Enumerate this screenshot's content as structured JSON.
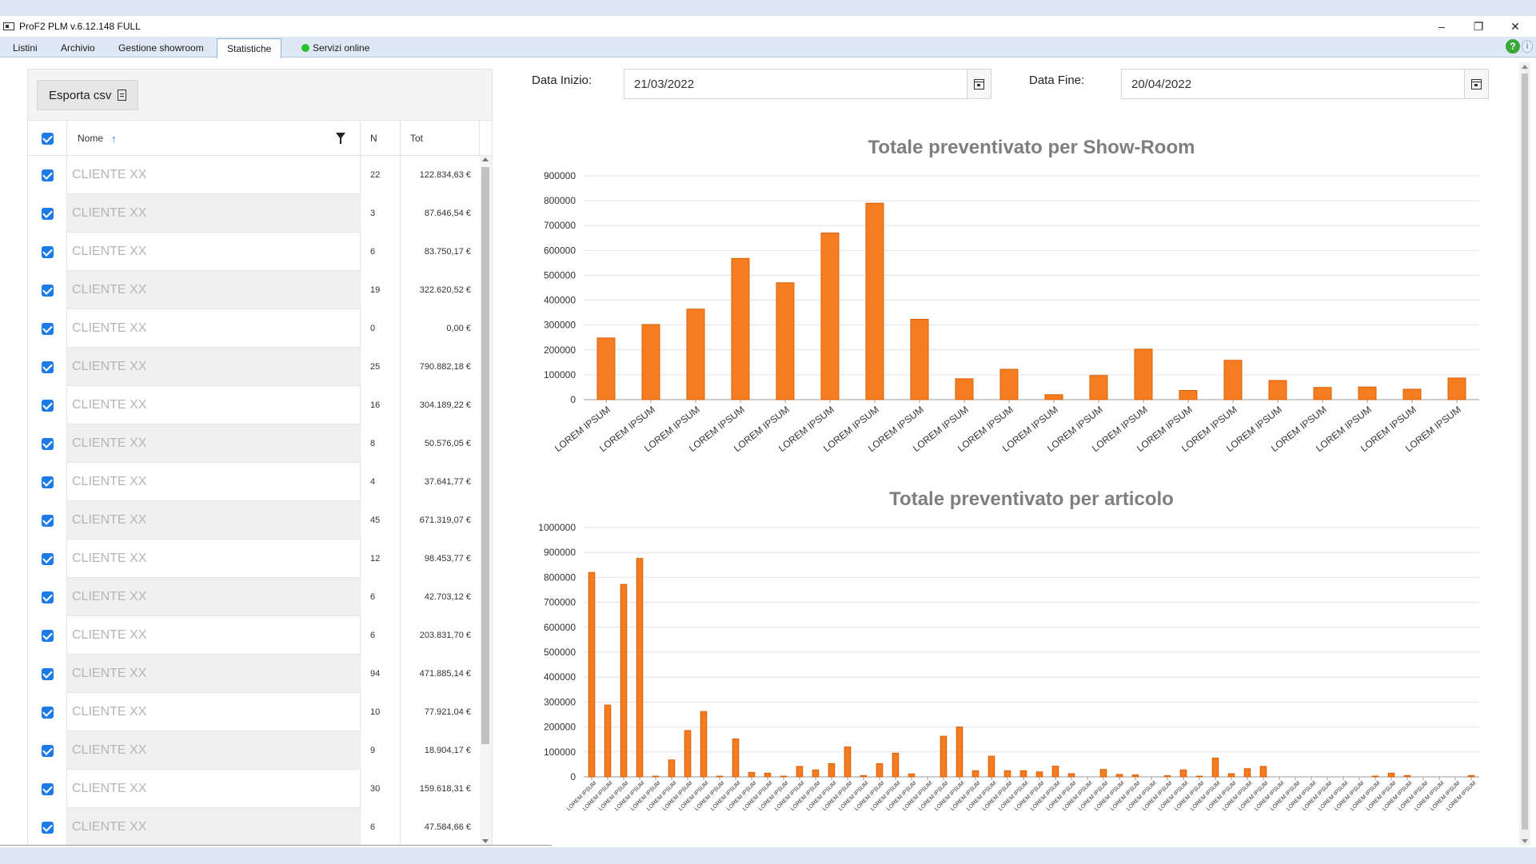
{
  "window": {
    "title": "ProF2 PLM  v.6.12.148 FULL",
    "controls": {
      "minimize": "–",
      "restore": "❐",
      "close": "✕"
    }
  },
  "tabs": [
    {
      "label": "Listini",
      "active": false
    },
    {
      "label": "Archivio",
      "active": false
    },
    {
      "label": "Gestione showroom",
      "active": false
    },
    {
      "label": "Statistiche",
      "active": true
    },
    {
      "label": "Servizi online",
      "active": false,
      "status_color": "#27c12b"
    }
  ],
  "help": {
    "help_glyph": "?",
    "info_glyph": "i"
  },
  "toolbar": {
    "export_label": "Esporta csv"
  },
  "table": {
    "headers": {
      "name": "Nome",
      "n": "N",
      "tot": "Tot"
    },
    "sort_indicator": "↑",
    "rows": [
      {
        "name": "CLIENTE XX",
        "n": "22",
        "tot": "122.834,63 €"
      },
      {
        "name": "CLIENTE XX",
        "n": "3",
        "tot": "87.646,54 €"
      },
      {
        "name": "CLIENTE XX",
        "n": "6",
        "tot": "83.750,17 €"
      },
      {
        "name": "CLIENTE XX",
        "n": "19",
        "tot": "322.620,52 €"
      },
      {
        "name": "CLIENTE XX",
        "n": "0",
        "tot": "0,00 €"
      },
      {
        "name": "CLIENTE XX",
        "n": "25",
        "tot": "790.882,18 €"
      },
      {
        "name": "CLIENTE XX",
        "n": "16",
        "tot": "304.189,22 €"
      },
      {
        "name": "CLIENTE XX",
        "n": "8",
        "tot": "50.576,05 €"
      },
      {
        "name": "CLIENTE XX",
        "n": "4",
        "tot": "37.641,77 €"
      },
      {
        "name": "CLIENTE XX",
        "n": "45",
        "tot": "671.319,07 €"
      },
      {
        "name": "CLIENTE XX",
        "n": "12",
        "tot": "98.453,77 €"
      },
      {
        "name": "CLIENTE XX",
        "n": "6",
        "tot": "42.703,12 €"
      },
      {
        "name": "CLIENTE XX",
        "n": "6",
        "tot": "203.831,70 €"
      },
      {
        "name": "CLIENTE XX",
        "n": "94",
        "tot": "471.885,14 €"
      },
      {
        "name": "CLIENTE XX",
        "n": "10",
        "tot": "77.921,04 €"
      },
      {
        "name": "CLIENTE XX",
        "n": "9",
        "tot": "18.904,17 €"
      },
      {
        "name": "CLIENTE XX",
        "n": "30",
        "tot": "159.618,31 €"
      },
      {
        "name": "CLIENTE XX",
        "n": "6",
        "tot": "47.584,66 €"
      }
    ]
  },
  "filters": {
    "start_label": "Data Inizio:",
    "start_value": "21/03/2022",
    "end_label": "Data Fine:",
    "end_value": "20/04/2022"
  },
  "colors": {
    "bar": "#f57c1f",
    "bar_dark": "#d9600a",
    "checkbox": "#1e7be6"
  },
  "chart_data": [
    {
      "type": "bar",
      "title": "Totale preventivato per Show-Room",
      "xlabel": "",
      "ylabel": "",
      "ylim": [
        0,
        900000
      ],
      "yticks": [
        0,
        100000,
        200000,
        300000,
        400000,
        500000,
        600000,
        700000,
        800000,
        900000
      ],
      "grid": true,
      "categories": [
        "LOREM IPSUM",
        "LOREM IPSUM",
        "LOREM IPSUM",
        "LOREM IPSUM",
        "LOREM IPSUM",
        "LOREM IPSUM",
        "LOREM IPSUM",
        "LOREM IPSUM",
        "LOREM IPSUM",
        "LOREM IPSUM",
        "LOREM IPSUM",
        "LOREM IPSUM",
        "LOREM IPSUM",
        "LOREM IPSUM",
        "LOREM IPSUM",
        "LOREM IPSUM",
        "LOREM IPSUM",
        "LOREM IPSUM",
        "LOREM IPSUM",
        "LOREM IPSUM"
      ],
      "values": [
        248000,
        302000,
        364000,
        568000,
        470000,
        670000,
        790000,
        323000,
        84000,
        122000,
        20000,
        97000,
        203000,
        37000,
        158000,
        77000,
        49000,
        51000,
        42000,
        87000
      ]
    },
    {
      "type": "bar",
      "title": "Totale preventivato per articolo",
      "xlabel": "",
      "ylabel": "",
      "ylim": [
        0,
        1000000
      ],
      "yticks": [
        0,
        100000,
        200000,
        300000,
        400000,
        500000,
        600000,
        700000,
        800000,
        900000,
        1000000
      ],
      "grid": true,
      "categories": [
        "LOREM IPSUM",
        "LOREM IPSUM",
        "LOREM IPSUM",
        "LOREM IPSUM",
        "LOREM IPSUM",
        "LOREM IPSUM",
        "LOREM IPSUM",
        "LOREM IPSUM",
        "LOREM IPSUM",
        "LOREM IPSUM",
        "LOREM IPSUM",
        "LOREM IPSUM",
        "LOREM IPSUM",
        "LOREM IPSUM",
        "LOREM IPSUM",
        "LOREM IPSUM",
        "LOREM IPSUM",
        "LOREM IPSUM",
        "LOREM IPSUM",
        "LOREM IPSUM",
        "LOREM IPSUM",
        "LOREM IPSUM",
        "LOREM IPSUM",
        "LOREM IPSUM",
        "LOREM IPSUM",
        "LOREM IPSUM",
        "LOREM IPSUM",
        "LOREM IPSUM",
        "LOREM IPSUM",
        "LOREM IPSUM",
        "LOREM IPSUM",
        "LOREM IPSUM",
        "LOREM IPSUM",
        "LOREM IPSUM",
        "LOREM IPSUM",
        "LOREM IPSUM",
        "LOREM IPSUM",
        "LOREM IPSUM",
        "LOREM IPSUM",
        "LOREM IPSUM",
        "LOREM IPSUM",
        "LOREM IPSUM",
        "LOREM IPSUM",
        "LOREM IPSUM",
        "LOREM IPSUM",
        "LOREM IPSUM",
        "LOREM IPSUM",
        "LOREM IPSUM",
        "LOREM IPSUM",
        "LOREM IPSUM",
        "LOREM IPSUM",
        "LOREM IPSUM",
        "LOREM IPSUM",
        "LOREM IPSUM",
        "LOREM IPSUM",
        "LOREM IPSUM"
      ],
      "values": [
        820000,
        288000,
        772000,
        876000,
        3000,
        68000,
        186000,
        262000,
        3000,
        152000,
        18000,
        15000,
        3000,
        42000,
        28000,
        53000,
        120000,
        5000,
        53000,
        95000,
        12000,
        0,
        163000,
        200000,
        25000,
        83000,
        25000,
        25000,
        20000,
        43000,
        13000,
        0,
        30000,
        10000,
        8000,
        0,
        5000,
        28000,
        3000,
        75000,
        13000,
        33000,
        42000,
        0,
        0,
        0,
        0,
        0,
        0,
        3000,
        15000,
        5000,
        0,
        0,
        0,
        5000
      ]
    }
  ]
}
